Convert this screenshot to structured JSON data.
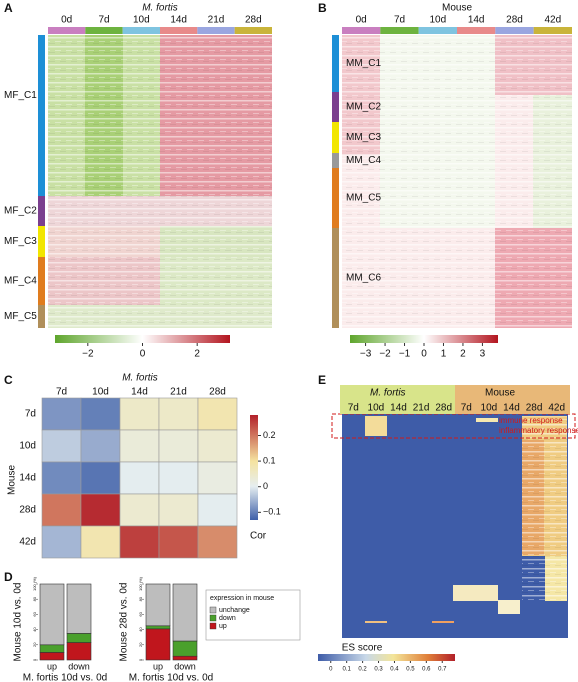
{
  "panels": {
    "a": {
      "label": "A",
      "title": "M. fortis",
      "columns": [
        "0d",
        "7d",
        "10d",
        "14d",
        "21d",
        "28d"
      ],
      "clusters": [
        "MF_C1",
        "MF_C2",
        "MF_C3",
        "MF_C4",
        "MF_C5"
      ],
      "colorbar_ticks": [
        {
          "value": -2,
          "label": "−2"
        },
        0,
        2
      ],
      "clim": [
        -3.2,
        3.2
      ]
    },
    "b": {
      "label": "B",
      "title": "Mouse",
      "columns": [
        "0d",
        "7d",
        "10d",
        "14d",
        "28d",
        "42d"
      ],
      "clusters": [
        "MM_C1",
        "MM_C2",
        "MM_C3",
        "MM_C4",
        "MM_C5",
        "MM_C6"
      ],
      "colorbar_ticks": [
        {
          "value": -3,
          "label": "−3"
        },
        {
          "value": -2,
          "label": "−2"
        },
        {
          "value": -1,
          "label": "−1"
        },
        0,
        1,
        2,
        3
      ],
      "clim": [
        -3.8,
        3.8
      ]
    },
    "c": {
      "label": "C",
      "title": "M. fortis",
      "row_title": "Mouse",
      "columns": [
        "7d",
        "10d",
        "14d",
        "21d",
        "28d"
      ],
      "rows": [
        "7d",
        "10d",
        "14d",
        "28d",
        "42d"
      ],
      "values": [
        [
          -0.08,
          -0.1,
          0.05,
          0.05,
          0.08
        ],
        [
          -0.03,
          -0.06,
          0.03,
          0.03,
          0.04
        ],
        [
          -0.09,
          -0.11,
          0.0,
          0.0,
          0.02
        ],
        [
          0.2,
          0.27,
          0.04,
          0.04,
          0.0
        ],
        [
          -0.05,
          0.08,
          0.25,
          0.23,
          0.18
        ]
      ],
      "colorbar_label": "Cor",
      "clim": [
        -0.13,
        0.28
      ],
      "colorbar_ticks": [
        0.2,
        0.1,
        0,
        {
          "value": -0.1,
          "label": "−0.1"
        }
      ]
    },
    "d": {
      "label": "D",
      "legend_title": "expression in mouse",
      "series": [
        {
          "name": "up",
          "color": "#c0161d"
        },
        {
          "name": "down",
          "color": "#4aa02c"
        },
        {
          "name": "unchange",
          "color": "#bdbdbd"
        }
      ],
      "ylim": [
        0,
        100
      ],
      "yticks": [
        0,
        20,
        40,
        60,
        80,
        {
          "value": 100,
          "label": "100 (%)"
        }
      ],
      "charts": [
        {
          "y_label": "Mouse 10d vs. 0d",
          "x_label": "M. fortis 10d vs. 0d",
          "categories": [
            "up",
            "down"
          ],
          "values": [
            [
              10,
              23
            ],
            [
              10,
              12
            ],
            [
              80,
              65
            ]
          ]
        },
        {
          "y_label": "Mouse 28d vs. 0d",
          "x_label": "M. fortis 10d vs. 0d",
          "categories": [
            "up",
            "down"
          ],
          "values": [
            [
              41,
              5
            ],
            [
              4,
              20
            ],
            [
              55,
              75
            ]
          ]
        }
      ]
    },
    "e": {
      "label": "E",
      "groups": [
        "M. fortis",
        "Mouse"
      ],
      "columns": [
        "7d",
        "10d",
        "14d",
        "21d",
        "28d",
        "7d",
        "10d",
        "14d",
        "28d",
        "42d"
      ],
      "annotations": [
        "immune response",
        "inflammatory response"
      ],
      "colorbar_title": "ES score",
      "clim": [
        -0.08,
        0.78
      ],
      "colorbar_ticks": [
        0,
        0.1,
        0.2,
        0.3,
        0.4,
        0.5,
        0.6,
        0.7
      ]
    }
  }
}
